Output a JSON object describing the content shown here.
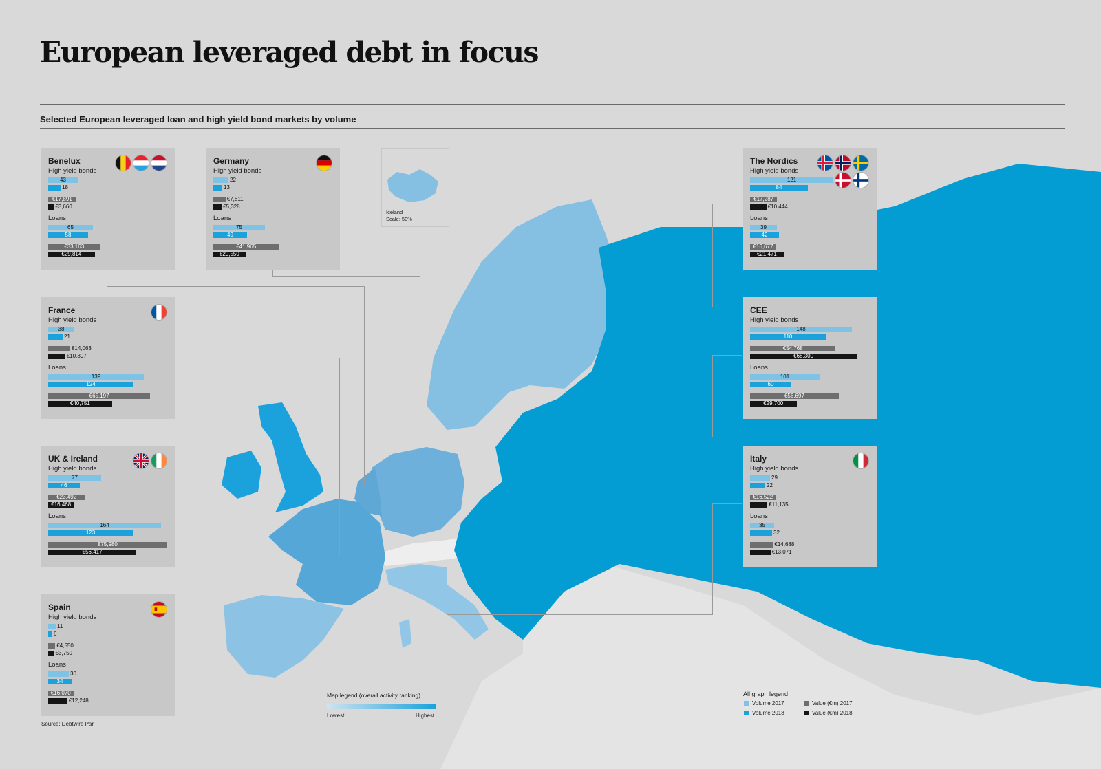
{
  "title": "European leveraged debt in focus",
  "subtitle": "Selected European leveraged loan and high yield bond markets by volume",
  "source": "Source: Debtwire Par",
  "iceland_inset": {
    "name": "Iceland",
    "scale": "Scale: 50%"
  },
  "map_legend": {
    "title": "Map legend (overall activity ranking)",
    "low": "Lowest",
    "high": "Highest"
  },
  "graph_legend": {
    "title": "All graph legend",
    "items": [
      "Volume 2017",
      "Volume 2018",
      "Value (€m) 2017",
      "Value (€m) 2018"
    ]
  },
  "colors": {
    "volume_2017": "#7ec2e6",
    "volume_2018": "#1ba2dc",
    "value_2017": "#6e6e6e",
    "value_2018": "#151515",
    "rank_low": "#cfe3f1",
    "rank_high": "#1ba2dc",
    "background": "#d9d9d9",
    "panel": "#c8c8c8"
  },
  "section_labels": {
    "hy": "High yield bonds",
    "loans": "Loans"
  },
  "regions": [
    {
      "name": "Benelux",
      "flags": [
        "belgium-flag",
        "luxembourg-flag",
        "netherlands-flag"
      ],
      "hy": {
        "vol17": 43,
        "vol18": 18,
        "val17": "€17,891",
        "val18": "€3,660",
        "val17_num": 17891,
        "val18_num": 3660
      },
      "loans": {
        "vol17": 65,
        "vol18": 58,
        "val17": "€33,163",
        "val18": "€29,814",
        "val17_num": 33163,
        "val18_num": 29814
      }
    },
    {
      "name": "Germany",
      "flags": [
        "germany-flag"
      ],
      "hy": {
        "vol17": 22,
        "vol18": 13,
        "val17": "€7,811",
        "val18": "€5,328",
        "val17_num": 7811,
        "val18_num": 5328
      },
      "loans": {
        "vol17": 75,
        "vol18": 49,
        "val17": "€41,965",
        "val18": "€20,550",
        "val17_num": 41965,
        "val18_num": 20550
      }
    },
    {
      "name": "France",
      "flags": [
        "france-flag"
      ],
      "hy": {
        "vol17": 38,
        "vol18": 21,
        "val17": "€14,063",
        "val18": "€10,897",
        "val17_num": 14063,
        "val18_num": 10897
      },
      "loans": {
        "vol17": 139,
        "vol18": 124,
        "val17": "€65,197",
        "val18": "€40,751",
        "val17_num": 65197,
        "val18_num": 40751
      }
    },
    {
      "name": "UK & Ireland",
      "flags": [
        "uk-flag",
        "ireland-flag"
      ],
      "hy": {
        "vol17": 77,
        "vol18": 46,
        "val17": "€23,492",
        "val18": "€16,468",
        "val17_num": 23492,
        "val18_num": 16468
      },
      "loans": {
        "vol17": 164,
        "vol18": 123,
        "val17": "€75,980",
        "val18": "€56,417",
        "val17_num": 75980,
        "val18_num": 56417
      }
    },
    {
      "name": "Spain",
      "flags": [
        "spain-flag"
      ],
      "hy": {
        "vol17": 11,
        "vol18": 6,
        "val17": "€4,550",
        "val18": "€3,750",
        "val17_num": 4550,
        "val18_num": 3750
      },
      "loans": {
        "vol17": 30,
        "vol18": 34,
        "val17": "€16,070",
        "val18": "€12,248",
        "val17_num": 16070,
        "val18_num": 12248
      }
    },
    {
      "name": "The Nordics",
      "flags": [
        "iceland-flag",
        "norway-flag",
        "sweden-flag",
        "denmark-flag",
        "finland-flag"
      ],
      "hy": {
        "vol17": 121,
        "vol18": 84,
        "val17": "€17,287",
        "val18": "€10,444",
        "val17_num": 17287,
        "val18_num": 10444
      },
      "loans": {
        "vol17": 39,
        "vol18": 42,
        "val17": "€16,677",
        "val18": "€21,471",
        "val17_num": 16677,
        "val18_num": 21471
      }
    },
    {
      "name": "CEE",
      "flags": [],
      "hy": {
        "vol17": 148,
        "vol18": 110,
        "val17": "€54,768",
        "val18": "€68,300",
        "val17_num": 54768,
        "val18_num": 68300
      },
      "loans": {
        "vol17": 101,
        "vol18": 60,
        "val17": "€56,697",
        "val18": "€29,700",
        "val17_num": 56697,
        "val18_num": 29700
      }
    },
    {
      "name": "Italy",
      "flags": [
        "italy-flag"
      ],
      "hy": {
        "vol17": 29,
        "vol18": 22,
        "val17": "€16,522",
        "val18": "€11,135",
        "val17_num": 16522,
        "val18_num": 11135
      },
      "loans": {
        "vol17": 35,
        "vol18": 32,
        "val17": "€14,688",
        "val18": "€13,071",
        "val17_num": 14688,
        "val18_num": 13071
      }
    }
  ]
}
